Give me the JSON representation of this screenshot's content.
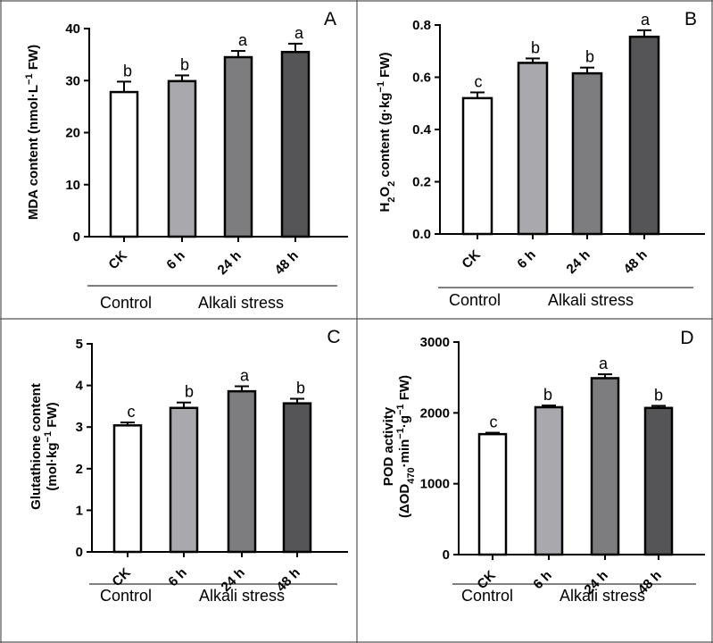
{
  "chart_data": [
    {
      "type": "bar",
      "panel_letter": "A",
      "ylabel_parts": [
        "MDA content (nmol·L",
        "−1",
        " FW)"
      ],
      "categories": [
        "CK",
        "6 h",
        "24 h",
        "48 h"
      ],
      "values": [
        27.8,
        29.9,
        34.5,
        35.5
      ],
      "errors": [
        2.0,
        1.1,
        1.2,
        1.6
      ],
      "significance": [
        "b",
        "b",
        "a",
        "a"
      ],
      "ylim": [
        0,
        40
      ],
      "yticks": [
        "0",
        "10",
        "20",
        "30",
        "40"
      ],
      "groups": [
        "Control",
        "Alkali stress"
      ],
      "colors": [
        "#ffffff",
        "#a8a8ad",
        "#7d7d80",
        "#555557"
      ]
    },
    {
      "type": "bar",
      "panel_letter": "B",
      "ylabel_parts": [
        "H",
        "2",
        "O",
        "2",
        " content (g·kg",
        "−1",
        " FW)"
      ],
      "categories": [
        "CK",
        "6 h",
        "24 h",
        "48 h"
      ],
      "values": [
        0.52,
        0.655,
        0.615,
        0.755
      ],
      "errors": [
        0.022,
        0.017,
        0.022,
        0.025
      ],
      "significance": [
        "c",
        "b",
        "b",
        "a"
      ],
      "ylim": [
        0,
        0.8
      ],
      "yticks": [
        "0.0",
        "0.2",
        "0.4",
        "0.6",
        "0.8"
      ],
      "groups": [
        "Control",
        "Alkali stress"
      ],
      "colors": [
        "#ffffff",
        "#a8a8ad",
        "#7d7d80",
        "#555557"
      ]
    },
    {
      "type": "bar",
      "panel_letter": "C",
      "ylabel_line1": "Glutathione content",
      "ylabel_parts": [
        "(mol·kg",
        "−1",
        " FW)"
      ],
      "categories": [
        "CK",
        "6 h",
        "24 h",
        "48 h"
      ],
      "values": [
        3.04,
        3.46,
        3.86,
        3.57
      ],
      "errors": [
        0.07,
        0.13,
        0.12,
        0.11
      ],
      "significance": [
        "c",
        "b",
        "a",
        "b"
      ],
      "ylim": [
        0,
        5
      ],
      "yticks": [
        "0",
        "1",
        "2",
        "3",
        "4",
        "5"
      ],
      "groups": [
        "Control",
        "Alkali stress"
      ],
      "colors": [
        "#ffffff",
        "#a8a8ad",
        "#7d7d80",
        "#555557"
      ]
    },
    {
      "type": "bar",
      "panel_letter": "D",
      "ylabel_line1": "POD activity",
      "ylabel_parts": [
        "(ΔOD",
        "470",
        "·min",
        "−1",
        "·g",
        "−1",
        " FW)"
      ],
      "categories": [
        "CK",
        "6 h",
        "24 h",
        "48 h"
      ],
      "values": [
        1700,
        2080,
        2490,
        2070
      ],
      "errors": [
        20,
        25,
        55,
        30
      ],
      "significance": [
        "c",
        "b",
        "a",
        "b"
      ],
      "ylim": [
        0,
        3000
      ],
      "yticks": [
        "0",
        "1000",
        "2000",
        "3000"
      ],
      "groups": [
        "Control",
        "Alkali stress"
      ],
      "colors": [
        "#ffffff",
        "#a8a8ad",
        "#7d7d80",
        "#555557"
      ]
    }
  ]
}
